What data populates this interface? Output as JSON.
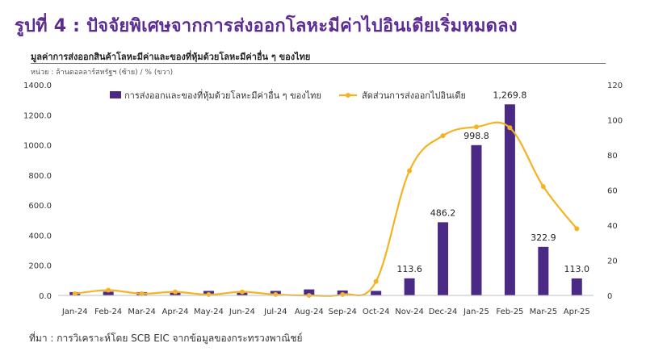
{
  "header": {
    "title": "รูปที่ 4 : ปัจจัยพิเศษจากการส่งออกโลหะมีค่าไปอินเดียเริ่มหมดลง",
    "subtitle": "มูลค่าการส่งออกสินค้าโลหะมีค่าและของที่หุ้มด้วยโลหะมีค่าอื่น ๆ ของไทย",
    "unit": "หน่วย : ล้านดอลลาร์สหรัฐฯ (ซ้าย) / % (ขวา)"
  },
  "footer": {
    "source": "ที่มา : การวิเคราะห์โดย SCB EIC จากข้อมูลของกระทรวงพาณิชย์"
  },
  "colors": {
    "bar": "#4b2a86",
    "line": "#f5b323",
    "title": "#5b2c91"
  },
  "chart_data": {
    "type": "bar",
    "categories": [
      "Jan-24",
      "Feb-24",
      "Mar-24",
      "Apr-24",
      "May-24",
      "Jun-24",
      "Jul-24",
      "Aug-24",
      "Sep-24",
      "Oct-24",
      "Nov-24",
      "Dec-24",
      "Jan-25",
      "Feb-25",
      "Mar-25",
      "Apr-25"
    ],
    "series": [
      {
        "name": "การส่งออกและของที่หุ้มด้วยโลหะมีค่าอื่น ๆ ของไทย",
        "type": "bar",
        "axis": "left",
        "values": [
          22,
          25,
          22,
          23,
          30,
          28,
          30,
          40,
          33,
          30,
          113.6,
          486.2,
          998.8,
          1269.8,
          322.9,
          113.0
        ]
      },
      {
        "name": "สัดส่วนการส่งออกไปอินเดีย",
        "type": "line",
        "axis": "right",
        "values": [
          1,
          3,
          1,
          2,
          0.5,
          2,
          0.5,
          0,
          0.5,
          8,
          71,
          91,
          96,
          95.5,
          62,
          38
        ]
      }
    ],
    "data_labels": {
      "10": "113.6",
      "11": "486.2",
      "12": "998.8",
      "13": "1,269.8",
      "14": "322.9",
      "15": "113.0"
    },
    "ylim_left": [
      0,
      1400
    ],
    "yticks_left": [
      "0.0",
      "200.0",
      "400.0",
      "600.0",
      "800.0",
      "1000.0",
      "1200.0",
      "1400.0"
    ],
    "ylim_right": [
      0,
      120
    ],
    "yticks_right": [
      "0",
      "20",
      "40",
      "60",
      "80",
      "100",
      "120"
    ],
    "legend_position": "top"
  }
}
